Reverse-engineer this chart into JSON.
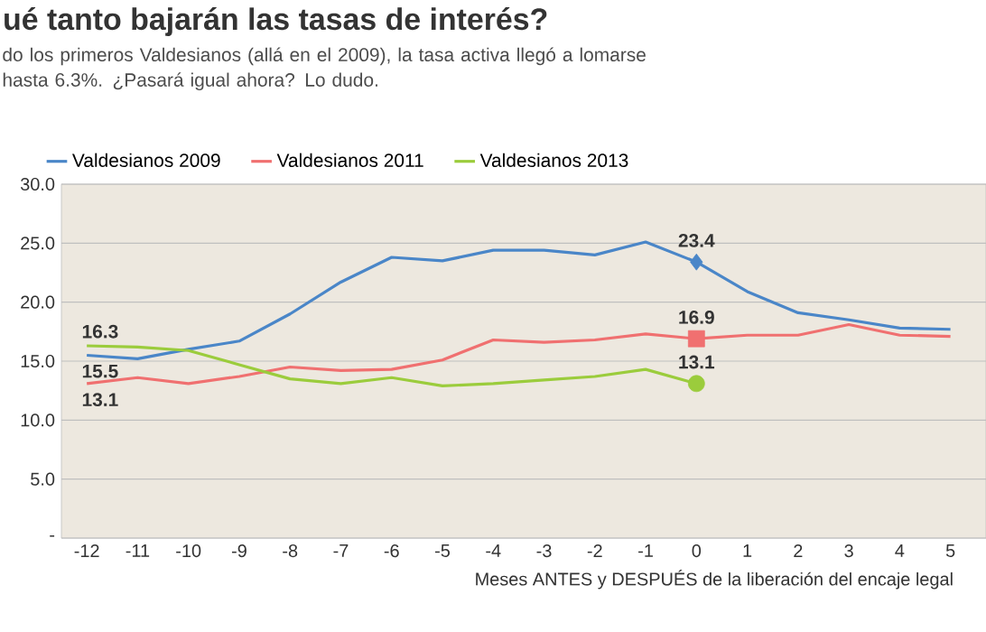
{
  "chart_data": {
    "type": "line",
    "title": "ué tanto bajarán las tasas de interés?",
    "subtitle": "do los primeros Valdesianos (allá en el 2009), la tasa activa llegó a lomarse hasta 6.3%. ¿Pasará igual ahora? Lo dudo.",
    "xlabel": "Meses ANTES y DESPUÉS de la liberación del encaje legal",
    "x": [
      -12,
      -11,
      -10,
      -9,
      -8,
      -7,
      -6,
      -5,
      -4,
      -3,
      -2,
      -1,
      0,
      1,
      2,
      3,
      4,
      5
    ],
    "xlim": [
      -12.5,
      5.7
    ],
    "xticks": [
      -12,
      -11,
      -10,
      -9,
      -8,
      -7,
      -6,
      -5,
      -4,
      -3,
      -2,
      -1,
      0,
      1,
      2,
      3,
      4,
      5
    ],
    "ylim": [
      0,
      30
    ],
    "yticks": [
      {
        "value": 0,
        "label": "-"
      },
      {
        "value": 5,
        "label": "5.0"
      },
      {
        "value": 10,
        "label": "10.0"
      },
      {
        "value": 15,
        "label": "15.0"
      },
      {
        "value": 20,
        "label": "20.0"
      },
      {
        "value": 25,
        "label": "25.0"
      },
      {
        "value": 30,
        "label": "30.0"
      }
    ],
    "grid": "y",
    "legend": "top",
    "series": [
      {
        "name": "Valdesianos 2009",
        "color": "#4a86c8",
        "values": [
          15.5,
          15.2,
          16.0,
          16.7,
          19.0,
          21.7,
          23.8,
          23.5,
          24.4,
          24.4,
          24.0,
          25.1,
          23.4,
          20.9,
          19.1,
          18.5,
          17.8,
          17.7
        ],
        "value_labels": [
          "15.5",
          null,
          null,
          null,
          null,
          null,
          null,
          null,
          null,
          null,
          null,
          null,
          null,
          null,
          null,
          null,
          null,
          null
        ]
      },
      {
        "name": "Valdesianos 2011",
        "color": "#f07070",
        "values": [
          13.1,
          13.6,
          13.1,
          13.7,
          14.5,
          14.2,
          14.3,
          15.1,
          16.8,
          16.6,
          16.8,
          17.3,
          16.9,
          17.2,
          17.2,
          18.1,
          17.2,
          17.1
        ],
        "value_labels": [
          "13.1",
          null,
          null,
          null,
          null,
          null,
          null,
          null,
          null,
          null,
          null,
          null,
          null,
          null,
          null,
          null,
          null,
          null
        ]
      },
      {
        "name": "Valdesianos 2013",
        "color": "#9bcc3c",
        "values": [
          16.3,
          16.2,
          15.9,
          14.7,
          13.5,
          13.1,
          13.6,
          12.9,
          13.1,
          13.4,
          13.7,
          14.3,
          13.1,
          null,
          null,
          null,
          null,
          null
        ],
        "value_labels": [
          "16.3",
          null,
          null,
          null,
          null,
          null,
          null,
          null,
          null,
          null,
          null,
          null,
          null,
          null,
          null,
          null,
          null,
          null
        ]
      },
      {
        "type": "scatter",
        "color": "#4a86c8",
        "marker": "diamond",
        "values": [
          null,
          null,
          null,
          null,
          null,
          null,
          null,
          null,
          null,
          null,
          null,
          null,
          23.4,
          null,
          null,
          null,
          null,
          null
        ],
        "value_labels": [
          null,
          null,
          null,
          null,
          null,
          null,
          null,
          null,
          null,
          null,
          null,
          null,
          "23.4",
          null,
          null,
          null,
          null,
          null
        ]
      },
      {
        "type": "scatter",
        "color": "#f07070",
        "marker": "square",
        "values": [
          null,
          null,
          null,
          null,
          null,
          null,
          null,
          null,
          null,
          null,
          null,
          null,
          16.9,
          null,
          null,
          null,
          null,
          null
        ],
        "value_labels": [
          null,
          null,
          null,
          null,
          null,
          null,
          null,
          null,
          null,
          null,
          null,
          null,
          "16.9",
          null,
          null,
          null,
          null,
          null
        ]
      },
      {
        "type": "scatter",
        "color": "#9bcc3c",
        "marker": "circle",
        "values": [
          null,
          null,
          null,
          null,
          null,
          null,
          null,
          null,
          null,
          null,
          null,
          null,
          13.1,
          null,
          null,
          null,
          null,
          null
        ],
        "value_labels": [
          null,
          null,
          null,
          null,
          null,
          null,
          null,
          null,
          null,
          null,
          null,
          null,
          "13.1",
          null,
          null,
          null,
          null,
          null
        ]
      }
    ]
  }
}
